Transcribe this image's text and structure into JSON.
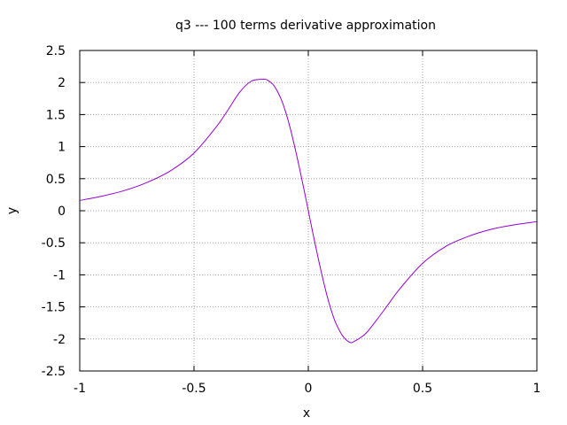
{
  "chart_data": {
    "type": "line",
    "title": "q3 --- 100 terms derivative approximation",
    "xlabel": "x",
    "ylabel": "y",
    "xlim": [
      -1,
      1
    ],
    "ylim": [
      -2.5,
      2.5
    ],
    "x_ticks": [
      -1,
      -0.5,
      0,
      0.5,
      1
    ],
    "x_tick_labels": [
      "-1",
      "-0.5",
      "0",
      "0.5",
      "1"
    ],
    "y_ticks": [
      -2.5,
      -2,
      -1.5,
      -1,
      -0.5,
      0,
      0.5,
      1,
      1.5,
      2,
      2.5
    ],
    "y_tick_labels": [
      "-2.5",
      "-2",
      "-1.5",
      "-1",
      "-0.5",
      "0",
      "0.5",
      "1",
      "1.5",
      "2",
      "2.5"
    ],
    "grid": true,
    "series": [
      {
        "color": "#9400d3",
        "x": [
          -1,
          -0.9,
          -0.8,
          -0.7,
          -0.6,
          -0.5,
          -0.4,
          -0.35,
          -0.3,
          -0.25,
          -0.2,
          -0.18,
          -0.15,
          -0.12,
          -0.1,
          -0.08,
          -0.05,
          -0.02,
          0,
          0.02,
          0.05,
          0.08,
          0.1,
          0.12,
          0.15,
          0.18,
          0.2,
          0.25,
          0.3,
          0.35,
          0.4,
          0.5,
          0.6,
          0.7,
          0.8,
          0.9,
          1
        ],
        "y": [
          0.16,
          0.23,
          0.32,
          0.45,
          0.63,
          0.9,
          1.32,
          1.58,
          1.85,
          2.02,
          2.05,
          2.04,
          1.95,
          1.75,
          1.55,
          1.3,
          0.85,
          0.35,
          0,
          -0.35,
          -0.85,
          -1.3,
          -1.55,
          -1.75,
          -1.95,
          -2.05,
          -2.04,
          -1.92,
          -1.7,
          -1.46,
          -1.22,
          -0.82,
          -0.56,
          -0.4,
          -0.29,
          -0.22,
          -0.17
        ]
      }
    ]
  }
}
